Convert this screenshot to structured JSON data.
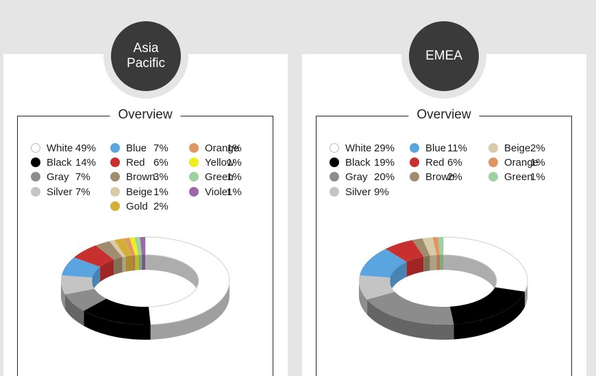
{
  "chart_data": [
    {
      "type": "pie",
      "region_label": "Asia\nPacific",
      "title": "Overview",
      "slices": [
        {
          "label": "White",
          "pct_text": "49%",
          "value": 49,
          "color": "#ffffff"
        },
        {
          "label": "Black",
          "pct_text": "14%",
          "value": 14,
          "color": "#000000"
        },
        {
          "label": "Gray",
          "pct_text": "7%",
          "value": 7,
          "color": "#8c8c8c"
        },
        {
          "label": "Silver",
          "pct_text": "7%",
          "value": 7,
          "color": "#c4c4c4"
        },
        {
          "label": "Blue",
          "pct_text": "7%",
          "value": 7,
          "color": "#5aa5e0"
        },
        {
          "label": "Red",
          "pct_text": "6%",
          "value": 6,
          "color": "#c8302f"
        },
        {
          "label": "Brown",
          "pct_text": "3%",
          "value": 3,
          "color": "#a08c6e"
        },
        {
          "label": "Beige",
          "pct_text": "1%",
          "value": 1,
          "color": "#d9cba7"
        },
        {
          "label": "Gold",
          "pct_text": "2%",
          "value": 2,
          "color": "#d4af37"
        },
        {
          "label": "Orange",
          "pct_text": "1%",
          "value": 1,
          "color": "#e09664"
        },
        {
          "label": "Yellow",
          "pct_text": "1%",
          "value": 1,
          "color": "#eeee22"
        },
        {
          "label": "Green",
          "pct_text": "1%",
          "value": 1,
          "color": "#9fd29f"
        },
        {
          "label": "Violet",
          "pct_text": "1%",
          "value": 1,
          "color": "#9a6aa8"
        }
      ]
    },
    {
      "type": "pie",
      "region_label": "EMEA",
      "title": "Overview",
      "slices": [
        {
          "label": "White",
          "pct_text": "29%",
          "value": 29,
          "color": "#ffffff"
        },
        {
          "label": "Black",
          "pct_text": "19%",
          "value": 19,
          "color": "#000000"
        },
        {
          "label": "Gray",
          "pct_text": "20%",
          "value": 20,
          "color": "#8c8c8c"
        },
        {
          "label": "Silver",
          "pct_text": "9%",
          "value": 9,
          "color": "#c4c4c4"
        },
        {
          "label": "Blue",
          "pct_text": "11%",
          "value": 11,
          "color": "#5aa5e0"
        },
        {
          "label": "Red",
          "pct_text": "6%",
          "value": 6,
          "color": "#c8302f"
        },
        {
          "label": "Brown",
          "pct_text": "2%",
          "value": 2,
          "color": "#a08c6e"
        },
        {
          "label": "Beige",
          "pct_text": "2%",
          "value": 2,
          "color": "#d9cba7"
        },
        {
          "label": "Orange",
          "pct_text": "1%",
          "value": 1,
          "color": "#e09664"
        },
        {
          "label": "Green",
          "pct_text": "1%",
          "value": 1,
          "color": "#9fd29f"
        }
      ]
    }
  ]
}
